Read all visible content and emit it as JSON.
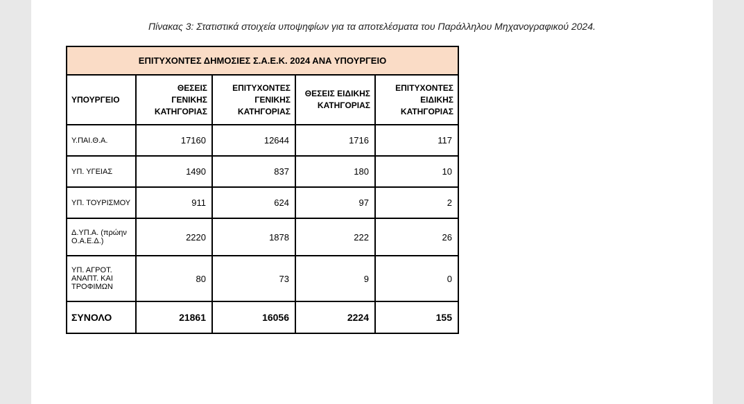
{
  "caption": "Πίνακας 3: Στατιστικά στοιχεία υποψηφίων για τα αποτελέσματα του Παράλληλου Μηχανογραφικού 2024.",
  "table": {
    "title": "ΕΠΙΤΥΧΟΝΤΕΣ ΔΗΜΟΣΙΕΣ Σ.Α.Ε.Κ. 2024 ΑΝΑ ΥΠΟΥΡΓΕΙΟ",
    "headers": {
      "col0": "ΥΠΟΥΡΓΕΙΟ",
      "col1": "ΘΕΣΕΙΣ ΓΕΝΙΚΗΣ ΚΑΤΗΓΟΡΙΑΣ",
      "col2": "ΕΠΙΤΥΧΟΝΤΕΣ ΓΕΝΙΚΗΣ ΚΑΤΗΓΟΡΙΑΣ",
      "col3": "ΘΕΣΕΙΣ ΕΙΔΙΚΗΣ ΚΑΤΗΓΟΡΙΑΣ",
      "col4": "ΕΠΙΤΥΧΟΝΤΕΣ ΕΙΔΙΚΗΣ ΚΑΤΗΓΟΡΙΑΣ"
    },
    "rows": [
      {
        "label": "Υ.ΠΑΙ.Θ.Α.",
        "c1": "17160",
        "c2": "12644",
        "c3": "1716",
        "c4": "117"
      },
      {
        "label": "ΥΠ. ΥΓΕΙΑΣ",
        "c1": "1490",
        "c2": "837",
        "c3": "180",
        "c4": "10"
      },
      {
        "label": "ΥΠ. ΤΟΥΡΙΣΜΟΥ",
        "c1": "911",
        "c2": "624",
        "c3": "97",
        "c4": "2"
      },
      {
        "label": "Δ.ΥΠ.Α. (πρώην Ο.Α.Ε.Δ.)",
        "c1": "2220",
        "c2": "1878",
        "c3": "222",
        "c4": "26"
      },
      {
        "label": "ΥΠ. ΑΓΡΟΤ. ΑΝΑΠΤ. ΚΑΙ ΤΡΟΦΙΜΩΝ",
        "c1": "80",
        "c2": "73",
        "c3": "9",
        "c4": "0"
      }
    ],
    "total": {
      "label": "ΣΥΝΟΛΟ",
      "c1": "21861",
      "c2": "16056",
      "c3": "2224",
      "c4": "155"
    }
  },
  "colors": {
    "page_bg": "#e8e8e8",
    "content_bg": "#ffffff",
    "title_bg": "#fadcc6",
    "border": "#000000",
    "text": "#222222"
  }
}
